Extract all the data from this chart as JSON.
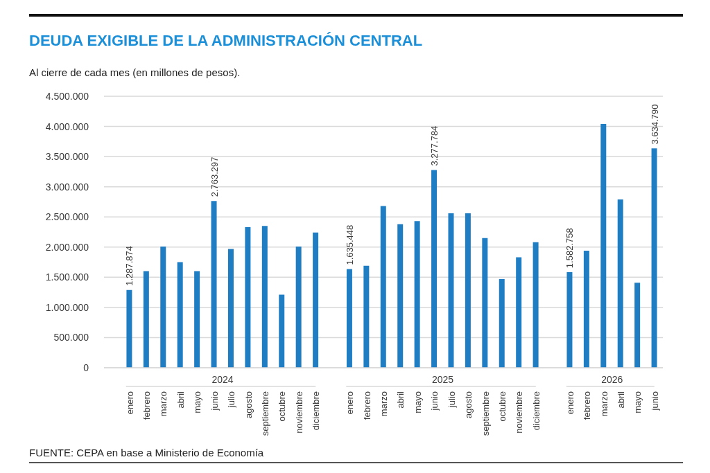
{
  "chart_data": {
    "type": "bar",
    "title": "DEUDA EXIGIBLE DE LA ADMINISTRACIÓN CENTRAL",
    "subtitle": "Al cierre de cada mes (en millones de pesos).",
    "categories": [
      "enero",
      "febrero",
      "marzo",
      "abril",
      "mayo",
      "junio",
      "julio",
      "agosto",
      "septiembre",
      "octubre",
      "noviembre",
      "diciembre",
      null,
      "enero",
      "febrero",
      "marzo",
      "abril",
      "mayo",
      "junio",
      "julio",
      "agosto",
      "septiembre",
      "octubre",
      "noviembre",
      "diciembre",
      null,
      "enero",
      "febrero",
      "marzo",
      "abril",
      "mayo",
      "junio"
    ],
    "values": [
      1287874,
      1600000,
      2010000,
      1750000,
      1600000,
      2763297,
      1970000,
      2330000,
      2350000,
      1210000,
      2010000,
      2240000,
      null,
      1635448,
      1690000,
      2680000,
      2380000,
      2430000,
      3277784,
      2560000,
      2560000,
      2150000,
      1470000,
      1830000,
      2080000,
      null,
      1582758,
      1940000,
      4040000,
      2790000,
      1410000,
      3634790
    ],
    "value_labels": [
      "1.287.874",
      null,
      null,
      null,
      null,
      "2.763.297",
      null,
      null,
      null,
      null,
      null,
      null,
      null,
      "1.635.448",
      null,
      null,
      null,
      null,
      "3.277.784",
      null,
      null,
      null,
      null,
      null,
      null,
      null,
      "1.582.758",
      null,
      null,
      null,
      null,
      "3.634.790"
    ],
    "color": "#1f7ec3",
    "ylim": [
      0,
      4500000
    ],
    "yticks": [
      0,
      {
        "value": 500000,
        "label": "500.000"
      },
      {
        "value": 1000000,
        "label": "1.000.000"
      },
      {
        "value": 1500000,
        "label": "1.500.000"
      },
      {
        "value": 2000000,
        "label": "2.000.000"
      },
      {
        "value": 2500000,
        "label": "2.500.000"
      },
      {
        "value": 3000000,
        "label": "3.000.000"
      },
      {
        "value": 3500000,
        "label": "3.500.000"
      },
      {
        "value": 4000000,
        "label": "4.000.000"
      },
      {
        "value": 4500000,
        "label": "4.500.000"
      }
    ],
    "grid": "y",
    "annotations": [
      "2024",
      "2025",
      "2026",
      "FUENTE: CEPA en base a Ministerio de Economía"
    ]
  }
}
